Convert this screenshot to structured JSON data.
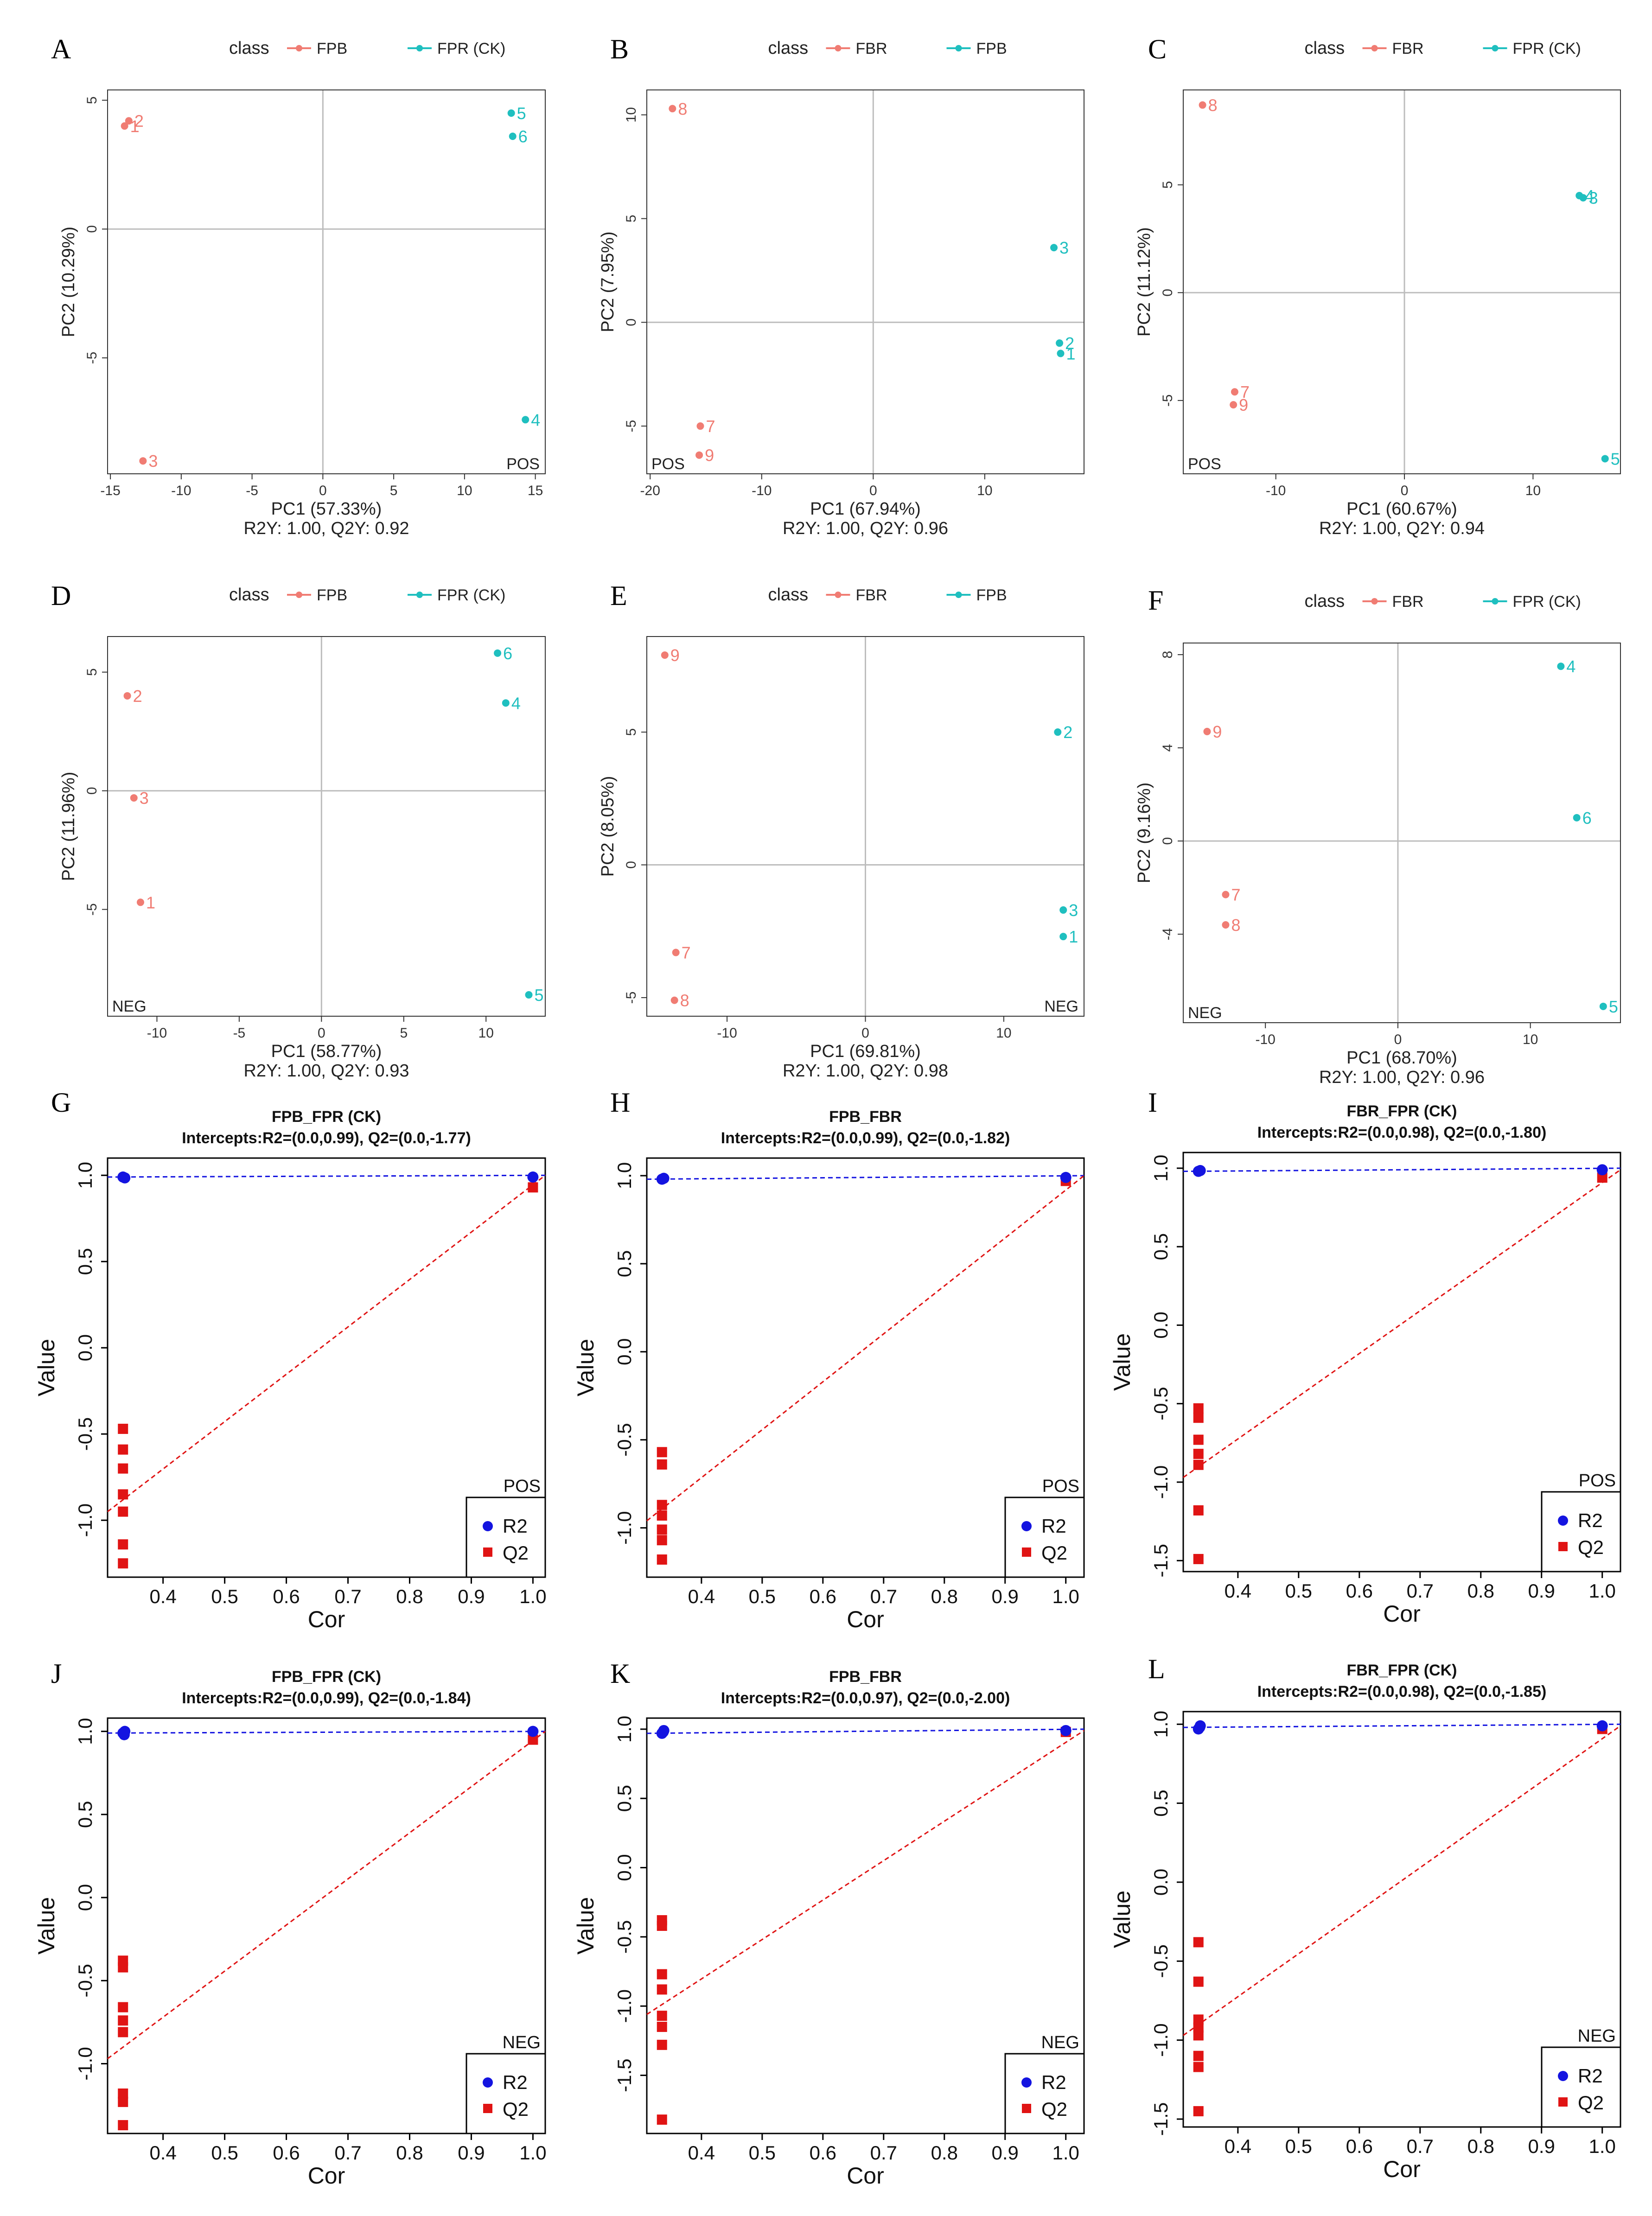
{
  "colors": {
    "group_a": "#F07C73",
    "group_b": "#1FBFBF",
    "r2": "#1414E0",
    "q2": "#E01414",
    "grid": "#BDBDBD",
    "axis": "#333333"
  },
  "chart_data": [
    {
      "panel": "A",
      "type": "scatter",
      "kind": "pca",
      "legend": {
        "title": "class",
        "entries": [
          "FPB",
          "FPR (CK)"
        ]
      },
      "xlabel": "PC1 (57.33%)",
      "ylabel": "PC2 (10.29%)",
      "subtitle": "R2Y: 1.00, Q2Y: 0.92",
      "mode": "POS",
      "xlim": [
        -15.2,
        15.7
      ],
      "ylim": [
        -9.5,
        5.4
      ],
      "xticks": [
        -15,
        -10,
        -5,
        0,
        5,
        10,
        15
      ],
      "yticks": [
        -5,
        0,
        5
      ],
      "points": [
        {
          "label": "2",
          "x": -13.7,
          "y": 4.2,
          "group": 0
        },
        {
          "label": "1",
          "x": -14.0,
          "y": 4.0,
          "group": 0
        },
        {
          "label": "3",
          "x": -12.7,
          "y": -9.0,
          "group": 0
        },
        {
          "label": "5",
          "x": 13.3,
          "y": 4.5,
          "group": 1
        },
        {
          "label": "6",
          "x": 13.4,
          "y": 3.6,
          "group": 1
        },
        {
          "label": "4",
          "x": 14.3,
          "y": -7.4,
          "group": 1
        }
      ]
    },
    {
      "panel": "B",
      "type": "scatter",
      "kind": "pca",
      "legend": {
        "title": "class",
        "entries": [
          "FBR",
          "FPB"
        ]
      },
      "xlabel": "PC1 (67.94%)",
      "ylabel": "PC2 (7.95%)",
      "subtitle": "R2Y: 1.00, Q2Y: 0.96",
      "mode": "POS",
      "xlim": [
        -20.3,
        18.9
      ],
      "ylim": [
        -7.3,
        11.2
      ],
      "xticks": [
        -20,
        -10,
        0,
        10
      ],
      "yticks": [
        -5,
        0,
        5,
        10
      ],
      "points": [
        {
          "label": "8",
          "x": -18.0,
          "y": 10.3,
          "group": 0
        },
        {
          "label": "7",
          "x": -15.5,
          "y": -5.0,
          "group": 0
        },
        {
          "label": "9",
          "x": -15.6,
          "y": -6.4,
          "group": 0
        },
        {
          "label": "3",
          "x": 16.2,
          "y": 3.6,
          "group": 1
        },
        {
          "label": "2",
          "x": 16.7,
          "y": -1.0,
          "group": 1
        },
        {
          "label": "1",
          "x": 16.8,
          "y": -1.5,
          "group": 1
        }
      ]
    },
    {
      "panel": "C",
      "type": "scatter",
      "kind": "pca",
      "legend": {
        "title": "class",
        "entries": [
          "FBR",
          "FPR (CK)"
        ]
      },
      "xlabel": "PC1 (60.67%)",
      "ylabel": "PC2 (11.12%)",
      "subtitle": "R2Y: 1.00, Q2Y: 0.94",
      "mode": "POS",
      "xlim": [
        -17.2,
        16.8
      ],
      "ylim": [
        -8.4,
        9.4
      ],
      "xticks": [
        -10,
        0,
        10
      ],
      "yticks": [
        -5,
        0,
        5
      ],
      "points": [
        {
          "label": "8",
          "x": -15.7,
          "y": 8.7,
          "group": 0
        },
        {
          "label": "7",
          "x": -13.2,
          "y": -4.6,
          "group": 0
        },
        {
          "label": "9",
          "x": -13.3,
          "y": -5.2,
          "group": 0
        },
        {
          "label": "4",
          "x": 13.6,
          "y": 4.5,
          "group": 1
        },
        {
          "label": "3",
          "x": 13.9,
          "y": 4.4,
          "group": 1
        },
        {
          "label": "5",
          "x": 15.6,
          "y": -7.7,
          "group": 1
        }
      ]
    },
    {
      "panel": "D",
      "type": "scatter",
      "kind": "pca",
      "legend": {
        "title": "class",
        "entries": [
          "FPB",
          "FPR (CK)"
        ]
      },
      "xlabel": "PC1 (58.77%)",
      "ylabel": "PC2 (11.96%)",
      "subtitle": "R2Y: 1.00, Q2Y: 0.93",
      "mode": "NEG",
      "xlim": [
        -13.0,
        13.6
      ],
      "ylim": [
        -9.5,
        6.5
      ],
      "xticks": [
        -10,
        -5,
        0,
        5,
        10
      ],
      "yticks": [
        -5,
        0,
        5
      ],
      "points": [
        {
          "label": "2",
          "x": -11.8,
          "y": 4.0,
          "group": 0
        },
        {
          "label": "3",
          "x": -11.4,
          "y": -0.3,
          "group": 0
        },
        {
          "label": "1",
          "x": -11.0,
          "y": -4.7,
          "group": 0
        },
        {
          "label": "6",
          "x": 10.7,
          "y": 5.8,
          "group": 1
        },
        {
          "label": "4",
          "x": 11.2,
          "y": 3.7,
          "group": 1
        },
        {
          "label": "5",
          "x": 12.6,
          "y": -8.6,
          "group": 1
        }
      ]
    },
    {
      "panel": "E",
      "type": "scatter",
      "kind": "pca",
      "legend": {
        "title": "class",
        "entries": [
          "FBR",
          "FPB"
        ]
      },
      "xlabel": "PC1 (69.81%)",
      "ylabel": "PC2 (8.05%)",
      "subtitle": "R2Y: 1.00, Q2Y: 0.98",
      "mode": "NEG",
      "xlim": [
        -15.8,
        15.8
      ],
      "ylim": [
        -5.7,
        8.6
      ],
      "xticks": [
        -10,
        0,
        10
      ],
      "yticks": [
        -5,
        0,
        5
      ],
      "points": [
        {
          "label": "9",
          "x": -14.5,
          "y": 7.9,
          "group": 0
        },
        {
          "label": "7",
          "x": -13.7,
          "y": -3.3,
          "group": 0
        },
        {
          "label": "8",
          "x": -13.8,
          "y": -5.1,
          "group": 0
        },
        {
          "label": "2",
          "x": 13.9,
          "y": 5.0,
          "group": 1
        },
        {
          "label": "3",
          "x": 14.3,
          "y": -1.7,
          "group": 1
        },
        {
          "label": "1",
          "x": 14.3,
          "y": -2.7,
          "group": 1
        }
      ]
    },
    {
      "panel": "F",
      "type": "scatter",
      "kind": "pca",
      "legend": {
        "title": "class",
        "entries": [
          "FBR",
          "FPR (CK)"
        ]
      },
      "xlabel": "PC1 (68.70%)",
      "ylabel": "PC2 (9.16%)",
      "subtitle": "R2Y: 1.00, Q2Y: 0.96",
      "mode": "NEG",
      "xlim": [
        -16.2,
        16.8
      ],
      "ylim": [
        -7.8,
        8.5
      ],
      "xticks": [
        -10,
        0,
        10
      ],
      "yticks": [
        -4,
        0,
        4,
        8
      ],
      "points": [
        {
          "label": "9",
          "x": -14.4,
          "y": 4.7,
          "group": 0
        },
        {
          "label": "7",
          "x": -13.0,
          "y": -2.3,
          "group": 0
        },
        {
          "label": "8",
          "x": -13.0,
          "y": -3.6,
          "group": 0
        },
        {
          "label": "4",
          "x": 12.3,
          "y": 7.5,
          "group": 1
        },
        {
          "label": "6",
          "x": 13.5,
          "y": 1.0,
          "group": 1
        },
        {
          "label": "5",
          "x": 15.5,
          "y": -7.1,
          "group": 1
        }
      ]
    },
    {
      "panel": "G",
      "type": "scatter",
      "kind": "perm",
      "title": "FPB_FPR (CK)",
      "subtitle": "Intercepts:R2=(0.0,0.99), Q2=(0.0,-1.77)",
      "xlabel": "Cor",
      "ylabel": "Value",
      "mode": "POS",
      "legend_entries": [
        "R2",
        "Q2"
      ],
      "xlim": [
        0.31,
        1.02
      ],
      "ylim": [
        -1.33,
        1.1
      ],
      "xticks": [
        0.4,
        0.5,
        0.6,
        0.7,
        0.8,
        0.9,
        1.0
      ],
      "xtick_labels": [
        "0.4",
        "0.5",
        "0.6",
        "0.7",
        "0.8",
        "0.9",
        "1.0"
      ],
      "yticks": [
        -1.0,
        -0.5,
        0.0,
        0.5,
        1.0
      ],
      "ytick_labels": [
        "-1.0",
        "-0.5",
        "0.0",
        "0.5",
        "1.0"
      ],
      "r2_points": [
        [
          0.335,
          0.99
        ],
        [
          0.338,
          0.985
        ],
        [
          1.0,
          0.99
        ]
      ],
      "q2_points": [
        [
          0.335,
          -0.47
        ],
        [
          0.335,
          -0.59
        ],
        [
          0.335,
          -0.7
        ],
        [
          0.335,
          -0.85
        ],
        [
          0.335,
          -0.95
        ],
        [
          0.335,
          -1.14
        ],
        [
          0.335,
          -1.25
        ],
        [
          1.0,
          0.93
        ]
      ],
      "r2_line": [
        [
          0.31,
          0.99
        ],
        [
          1.02,
          1.0
        ]
      ],
      "q2_line": [
        [
          0.31,
          -0.95
        ],
        [
          1.02,
          1.0
        ]
      ]
    },
    {
      "panel": "H",
      "type": "scatter",
      "kind": "perm",
      "title": "FPB_FBR",
      "subtitle": "Intercepts:R2=(0.0,0.99), Q2=(0.0,-1.82)",
      "xlabel": "Cor",
      "ylabel": "Value",
      "mode": "POS",
      "legend_entries": [
        "R2",
        "Q2"
      ],
      "xlim": [
        0.31,
        1.03
      ],
      "ylim": [
        -1.28,
        1.1
      ],
      "xticks": [
        0.4,
        0.5,
        0.6,
        0.7,
        0.8,
        0.9,
        1.0
      ],
      "xtick_labels": [
        "0.4",
        "0.5",
        "0.6",
        "0.7",
        "0.8",
        "0.9",
        "1.0"
      ],
      "yticks": [
        -1.0,
        -0.5,
        0.0,
        0.5,
        1.0
      ],
      "ytick_labels": [
        "-1.0",
        "-0.5",
        "0.0",
        "0.5",
        "1.0"
      ],
      "r2_points": [
        [
          0.335,
          0.98
        ],
        [
          0.338,
          0.985
        ],
        [
          1.0,
          0.99
        ]
      ],
      "q2_points": [
        [
          0.335,
          -0.57
        ],
        [
          0.335,
          -0.64
        ],
        [
          0.335,
          -0.87
        ],
        [
          0.335,
          -0.93
        ],
        [
          0.335,
          -1.01
        ],
        [
          0.335,
          -1.07
        ],
        [
          0.335,
          -1.18
        ],
        [
          1.0,
          0.97
        ]
      ],
      "r2_line": [
        [
          0.31,
          0.98
        ],
        [
          1.03,
          1.0
        ]
      ],
      "q2_line": [
        [
          0.31,
          -0.96
        ],
        [
          1.03,
          1.0
        ]
      ]
    },
    {
      "panel": "I",
      "type": "scatter",
      "kind": "perm",
      "title": "FBR_FPR (CK)",
      "subtitle": "Intercepts:R2=(0.0,0.98), Q2=(0.0,-1.80)",
      "xlabel": "Cor",
      "ylabel": "Value",
      "mode": "POS",
      "legend_entries": [
        "R2",
        "Q2"
      ],
      "xlim": [
        0.31,
        1.03
      ],
      "ylim": [
        -1.57,
        1.1
      ],
      "xticks": [
        0.4,
        0.5,
        0.6,
        0.7,
        0.8,
        0.9,
        1.0
      ],
      "xtick_labels": [
        "0.4",
        "0.5",
        "0.6",
        "0.7",
        "0.8",
        "0.9",
        "1.0"
      ],
      "yticks": [
        -1.5,
        -1.0,
        -0.5,
        0.0,
        0.5,
        1.0
      ],
      "ytick_labels": [
        "-1.5",
        "-1.0",
        "-0.5",
        "0.0",
        "0.5",
        "1.0"
      ],
      "r2_points": [
        [
          0.335,
          0.98
        ],
        [
          0.338,
          0.985
        ],
        [
          1.0,
          0.99
        ]
      ],
      "q2_points": [
        [
          0.335,
          -0.53
        ],
        [
          0.335,
          -0.59
        ],
        [
          0.335,
          -0.73
        ],
        [
          0.335,
          -0.82
        ],
        [
          0.335,
          -0.89
        ],
        [
          0.335,
          -1.18
        ],
        [
          0.335,
          -1.49
        ],
        [
          1.0,
          0.94
        ]
      ],
      "r2_line": [
        [
          0.31,
          0.98
        ],
        [
          1.03,
          1.0
        ]
      ],
      "q2_line": [
        [
          0.31,
          -0.97
        ],
        [
          1.03,
          0.99
        ]
      ]
    },
    {
      "panel": "J",
      "type": "scatter",
      "kind": "perm",
      "title": "FPB_FPR (CK)",
      "subtitle": "Intercepts:R2=(0.0,0.99), Q2=(0.0,-1.84)",
      "xlabel": "Cor",
      "ylabel": "Value",
      "mode": "NEG",
      "legend_entries": [
        "R2",
        "Q2"
      ],
      "xlim": [
        0.31,
        1.02
      ],
      "ylim": [
        -1.42,
        1.08
      ],
      "xticks": [
        0.4,
        0.5,
        0.6,
        0.7,
        0.8,
        0.9,
        1.0
      ],
      "xtick_labels": [
        "0.4",
        "0.5",
        "0.6",
        "0.7",
        "0.8",
        "0.9",
        "1.0"
      ],
      "yticks": [
        -1.0,
        -0.5,
        0.0,
        0.5,
        1.0
      ],
      "ytick_labels": [
        "-1.0",
        "-0.5",
        "0.0",
        "0.5",
        "1.0"
      ],
      "r2_points": [
        [
          0.335,
          0.99
        ],
        [
          0.337,
          0.98
        ],
        [
          0.338,
          1.0
        ],
        [
          1.0,
          1.0
        ]
      ],
      "q2_points": [
        [
          0.335,
          -0.38
        ],
        [
          0.335,
          -0.42
        ],
        [
          0.335,
          -0.66
        ],
        [
          0.335,
          -0.74
        ],
        [
          0.335,
          -0.81
        ],
        [
          0.335,
          -1.18
        ],
        [
          0.335,
          -1.23
        ],
        [
          0.335,
          -1.37
        ],
        [
          1.0,
          0.95
        ]
      ],
      "r2_line": [
        [
          0.31,
          0.99
        ],
        [
          1.02,
          1.0
        ]
      ],
      "q2_line": [
        [
          0.31,
          -0.97
        ],
        [
          1.02,
          1.0
        ]
      ]
    },
    {
      "panel": "K",
      "type": "scatter",
      "kind": "perm",
      "title": "FPB_FBR",
      "subtitle": "Intercepts:R2=(0.0,0.97), Q2=(0.0,-2.00)",
      "xlabel": "Cor",
      "ylabel": "Value",
      "mode": "NEG",
      "legend_entries": [
        "R2",
        "Q2"
      ],
      "xlim": [
        0.31,
        1.03
      ],
      "ylim": [
        -1.92,
        1.08
      ],
      "xticks": [
        0.4,
        0.5,
        0.6,
        0.7,
        0.8,
        0.9,
        1.0
      ],
      "xtick_labels": [
        "0.4",
        "0.5",
        "0.6",
        "0.7",
        "0.8",
        "0.9",
        "1.0"
      ],
      "yticks": [
        -1.5,
        -1.0,
        -0.5,
        0.0,
        0.5,
        1.0
      ],
      "ytick_labels": [
        "-1.5",
        "-1.0",
        "-0.5",
        "0.0",
        "0.5",
        "1.0"
      ],
      "r2_points": [
        [
          0.335,
          0.97
        ],
        [
          0.337,
          0.98
        ],
        [
          0.338,
          0.99
        ],
        [
          1.0,
          0.99
        ]
      ],
      "q2_points": [
        [
          0.335,
          -0.38
        ],
        [
          0.335,
          -0.42
        ],
        [
          0.335,
          -0.77
        ],
        [
          0.335,
          -0.88
        ],
        [
          0.335,
          -1.07
        ],
        [
          0.335,
          -1.15
        ],
        [
          0.335,
          -1.28
        ],
        [
          0.335,
          -1.82
        ],
        [
          1.0,
          0.98
        ]
      ],
      "r2_line": [
        [
          0.31,
          0.97
        ],
        [
          1.03,
          1.0
        ]
      ],
      "q2_line": [
        [
          0.31,
          -1.06
        ],
        [
          1.03,
          0.99
        ]
      ]
    },
    {
      "panel": "L",
      "type": "scatter",
      "kind": "perm",
      "title": "FBR_FPR (CK)",
      "subtitle": "Intercepts:R2=(0.0,0.98), Q2=(0.0,-1.85)",
      "xlabel": "Cor",
      "ylabel": "Value",
      "mode": "NEG",
      "legend_entries": [
        "R2",
        "Q2"
      ],
      "xlim": [
        0.31,
        1.03
      ],
      "ylim": [
        -1.55,
        1.08
      ],
      "xticks": [
        0.4,
        0.5,
        0.6,
        0.7,
        0.8,
        0.9,
        1.0
      ],
      "xtick_labels": [
        "0.4",
        "0.5",
        "0.6",
        "0.7",
        "0.8",
        "0.9",
        "1.0"
      ],
      "yticks": [
        -1.5,
        -1.0,
        -0.5,
        0.0,
        0.5,
        1.0
      ],
      "ytick_labels": [
        "-1.5",
        "-1.0",
        "-0.5",
        "0.0",
        "0.5",
        "1.0"
      ],
      "r2_points": [
        [
          0.335,
          0.97
        ],
        [
          0.337,
          0.98
        ],
        [
          0.338,
          0.99
        ],
        [
          1.0,
          0.99
        ]
      ],
      "q2_points": [
        [
          0.335,
          -0.38
        ],
        [
          0.335,
          -0.63
        ],
        [
          0.335,
          -0.87
        ],
        [
          0.335,
          -0.92
        ],
        [
          0.335,
          -0.97
        ],
        [
          0.335,
          -1.1
        ],
        [
          0.335,
          -1.17
        ],
        [
          0.335,
          -1.45
        ],
        [
          1.0,
          0.97
        ]
      ],
      "r2_line": [
        [
          0.31,
          0.98
        ],
        [
          1.03,
          1.0
        ]
      ],
      "q2_line": [
        [
          0.31,
          -0.97
        ],
        [
          1.03,
          0.99
        ]
      ]
    }
  ]
}
